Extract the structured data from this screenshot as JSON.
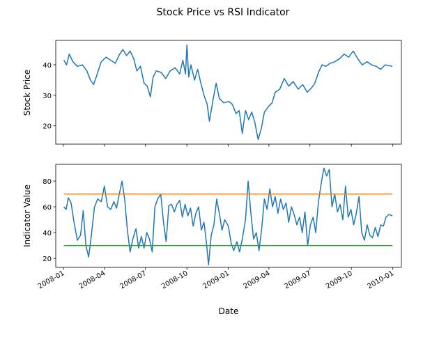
{
  "figure": {
    "title": "Stock Price vs RSI Indicator",
    "xlabel": "Date",
    "x_tick_labels": [
      "2008-01",
      "2008-04",
      "2008-07",
      "2008-10",
      "2009-01",
      "2009-04",
      "2009-07",
      "2009-10",
      "2010-01"
    ]
  },
  "chart_data": [
    {
      "type": "line",
      "ylabel": "Stock Price",
      "xlabel": "",
      "xlim": [
        "2007-12-15",
        "2010-01-20"
      ],
      "ylim": [
        14,
        48
      ],
      "yticks": [
        20,
        30,
        40
      ],
      "grid": false,
      "series": [
        {
          "color": "#1f77b4",
          "points": [
            [
              "2008-01-02",
              41.5
            ],
            [
              "2008-01-08",
              40.0
            ],
            [
              "2008-01-14",
              43.5
            ],
            [
              "2008-01-22",
              41.0
            ],
            [
              "2008-02-01",
              39.5
            ],
            [
              "2008-02-12",
              40.0
            ],
            [
              "2008-02-22",
              38.0
            ],
            [
              "2008-03-01",
              35.0
            ],
            [
              "2008-03-08",
              33.5
            ],
            [
              "2008-03-15",
              36.5
            ],
            [
              "2008-03-25",
              41.0
            ],
            [
              "2008-04-05",
              42.5
            ],
            [
              "2008-04-15",
              41.5
            ],
            [
              "2008-04-25",
              40.5
            ],
            [
              "2008-05-05",
              43.5
            ],
            [
              "2008-05-12",
              45.0
            ],
            [
              "2008-05-20",
              43.0
            ],
            [
              "2008-05-28",
              44.5
            ],
            [
              "2008-06-05",
              42.0
            ],
            [
              "2008-06-12",
              38.0
            ],
            [
              "2008-06-20",
              39.5
            ],
            [
              "2008-06-28",
              34.0
            ],
            [
              "2008-07-05",
              33.0
            ],
            [
              "2008-07-12",
              29.5
            ],
            [
              "2008-07-18",
              36.0
            ],
            [
              "2008-07-25",
              38.0
            ],
            [
              "2008-08-05",
              37.5
            ],
            [
              "2008-08-15",
              35.5
            ],
            [
              "2008-08-25",
              38.0
            ],
            [
              "2008-09-05",
              39.0
            ],
            [
              "2008-09-15",
              37.0
            ],
            [
              "2008-09-22",
              41.5
            ],
            [
              "2008-09-28",
              37.0
            ],
            [
              "2008-10-01",
              46.5
            ],
            [
              "2008-10-05",
              36.0
            ],
            [
              "2008-10-10",
              40.0
            ],
            [
              "2008-10-18",
              35.0
            ],
            [
              "2008-10-25",
              38.5
            ],
            [
              "2008-11-01",
              34.0
            ],
            [
              "2008-11-08",
              30.0
            ],
            [
              "2008-11-15",
              27.0
            ],
            [
              "2008-11-20",
              21.5
            ],
            [
              "2008-11-28",
              28.5
            ],
            [
              "2008-12-05",
              34.0
            ],
            [
              "2008-12-12",
              29.0
            ],
            [
              "2008-12-22",
              27.5
            ],
            [
              "2009-01-02",
              28.0
            ],
            [
              "2009-01-10",
              27.0
            ],
            [
              "2009-01-18",
              24.0
            ],
            [
              "2009-01-25",
              25.0
            ],
            [
              "2009-02-01",
              17.5
            ],
            [
              "2009-02-08",
              25.0
            ],
            [
              "2009-02-15",
              22.0
            ],
            [
              "2009-02-22",
              24.5
            ],
            [
              "2009-03-01",
              21.0
            ],
            [
              "2009-03-08",
              15.5
            ],
            [
              "2009-03-15",
              19.0
            ],
            [
              "2009-03-22",
              24.5
            ],
            [
              "2009-04-01",
              26.5
            ],
            [
              "2009-04-08",
              27.5
            ],
            [
              "2009-04-15",
              31.0
            ],
            [
              "2009-04-25",
              32.0
            ],
            [
              "2009-05-05",
              35.5
            ],
            [
              "2009-05-15",
              33.0
            ],
            [
              "2009-05-25",
              34.5
            ],
            [
              "2009-06-05",
              32.0
            ],
            [
              "2009-06-15",
              33.5
            ],
            [
              "2009-06-25",
              31.0
            ],
            [
              "2009-07-05",
              32.5
            ],
            [
              "2009-07-12",
              34.0
            ],
            [
              "2009-07-20",
              37.5
            ],
            [
              "2009-07-28",
              40.0
            ],
            [
              "2009-08-05",
              39.5
            ],
            [
              "2009-08-15",
              40.5
            ],
            [
              "2009-08-25",
              41.0
            ],
            [
              "2009-09-05",
              42.0
            ],
            [
              "2009-09-15",
              43.5
            ],
            [
              "2009-09-25",
              42.5
            ],
            [
              "2009-10-05",
              44.5
            ],
            [
              "2009-10-15",
              42.0
            ],
            [
              "2009-10-25",
              40.0
            ],
            [
              "2009-11-05",
              41.0
            ],
            [
              "2009-11-15",
              40.0
            ],
            [
              "2009-11-25",
              39.5
            ],
            [
              "2009-12-05",
              38.5
            ],
            [
              "2009-12-15",
              40.0
            ],
            [
              "2009-12-31",
              39.5
            ]
          ]
        }
      ]
    },
    {
      "type": "line",
      "ylabel": "Indicator Value",
      "xlabel": "Date",
      "xlim": [
        "2007-12-15",
        "2010-01-20"
      ],
      "ylim": [
        13,
        93
      ],
      "yticks": [
        20,
        40,
        60,
        80
      ],
      "grid": false,
      "series": [
        {
          "color": "#1f77b4",
          "points": [
            [
              "2008-01-02",
              60
            ],
            [
              "2008-01-07",
              58
            ],
            [
              "2008-01-12",
              67
            ],
            [
              "2008-01-18",
              63
            ],
            [
              "2008-01-24",
              49
            ],
            [
              "2008-02-01",
              34
            ],
            [
              "2008-02-08",
              38
            ],
            [
              "2008-02-14",
              57
            ],
            [
              "2008-02-20",
              30
            ],
            [
              "2008-02-26",
              21
            ],
            [
              "2008-03-03",
              38
            ],
            [
              "2008-03-10",
              60
            ],
            [
              "2008-03-17",
              66
            ],
            [
              "2008-03-25",
              64
            ],
            [
              "2008-04-01",
              76
            ],
            [
              "2008-04-08",
              60
            ],
            [
              "2008-04-15",
              58
            ],
            [
              "2008-04-22",
              64
            ],
            [
              "2008-04-28",
              59
            ],
            [
              "2008-05-04",
              70
            ],
            [
              "2008-05-10",
              80
            ],
            [
              "2008-05-16",
              66
            ],
            [
              "2008-05-22",
              42
            ],
            [
              "2008-05-28",
              25
            ],
            [
              "2008-06-03",
              35
            ],
            [
              "2008-06-10",
              43
            ],
            [
              "2008-06-16",
              28
            ],
            [
              "2008-06-22",
              37
            ],
            [
              "2008-06-28",
              28
            ],
            [
              "2008-07-04",
              40
            ],
            [
              "2008-07-10",
              35
            ],
            [
              "2008-07-16",
              25
            ],
            [
              "2008-07-22",
              60
            ],
            [
              "2008-07-28",
              66
            ],
            [
              "2008-08-04",
              70
            ],
            [
              "2008-08-10",
              48
            ],
            [
              "2008-08-16",
              33
            ],
            [
              "2008-08-22",
              61
            ],
            [
              "2008-08-28",
              62
            ],
            [
              "2008-09-03",
              56
            ],
            [
              "2008-09-09",
              62
            ],
            [
              "2008-09-15",
              65
            ],
            [
              "2008-09-21",
              52
            ],
            [
              "2008-09-27",
              62
            ],
            [
              "2008-10-03",
              53
            ],
            [
              "2008-10-09",
              59
            ],
            [
              "2008-10-15",
              45
            ],
            [
              "2008-10-21",
              55
            ],
            [
              "2008-10-27",
              60
            ],
            [
              "2008-11-02",
              42
            ],
            [
              "2008-11-08",
              48
            ],
            [
              "2008-11-14",
              30
            ],
            [
              "2008-11-18",
              15
            ],
            [
              "2008-11-24",
              38
            ],
            [
              "2008-11-30",
              46
            ],
            [
              "2008-12-06",
              66
            ],
            [
              "2008-12-12",
              55
            ],
            [
              "2008-12-18",
              42
            ],
            [
              "2008-12-24",
              50
            ],
            [
              "2009-01-01",
              45
            ],
            [
              "2009-01-07",
              32
            ],
            [
              "2009-01-13",
              26
            ],
            [
              "2009-01-20",
              33
            ],
            [
              "2009-01-26",
              25
            ],
            [
              "2009-02-01",
              35
            ],
            [
              "2009-02-08",
              50
            ],
            [
              "2009-02-14",
              80
            ],
            [
              "2009-02-20",
              55
            ],
            [
              "2009-02-26",
              35
            ],
            [
              "2009-03-04",
              40
            ],
            [
              "2009-03-10",
              26
            ],
            [
              "2009-03-16",
              43
            ],
            [
              "2009-03-22",
              66
            ],
            [
              "2009-03-28",
              58
            ],
            [
              "2009-04-03",
              74
            ],
            [
              "2009-04-09",
              60
            ],
            [
              "2009-04-15",
              68
            ],
            [
              "2009-04-21",
              55
            ],
            [
              "2009-04-27",
              66
            ],
            [
              "2009-05-03",
              58
            ],
            [
              "2009-05-09",
              63
            ],
            [
              "2009-05-15",
              48
            ],
            [
              "2009-05-21",
              60
            ],
            [
              "2009-05-27",
              54
            ],
            [
              "2009-06-02",
              46
            ],
            [
              "2009-06-08",
              52
            ],
            [
              "2009-06-14",
              40
            ],
            [
              "2009-06-20",
              56
            ],
            [
              "2009-06-26",
              30
            ],
            [
              "2009-07-02",
              46
            ],
            [
              "2009-07-08",
              52
            ],
            [
              "2009-07-14",
              40
            ],
            [
              "2009-07-20",
              64
            ],
            [
              "2009-07-26",
              78
            ],
            [
              "2009-08-01",
              90
            ],
            [
              "2009-08-07",
              84
            ],
            [
              "2009-08-13",
              89
            ],
            [
              "2009-08-19",
              60
            ],
            [
              "2009-08-25",
              70
            ],
            [
              "2009-08-31",
              56
            ],
            [
              "2009-09-06",
              62
            ],
            [
              "2009-09-12",
              50
            ],
            [
              "2009-09-18",
              76
            ],
            [
              "2009-09-24",
              52
            ],
            [
              "2009-09-30",
              58
            ],
            [
              "2009-10-06",
              46
            ],
            [
              "2009-10-12",
              55
            ],
            [
              "2009-10-18",
              68
            ],
            [
              "2009-10-24",
              40
            ],
            [
              "2009-10-30",
              34
            ],
            [
              "2009-11-05",
              46
            ],
            [
              "2009-11-11",
              38
            ],
            [
              "2009-11-17",
              36
            ],
            [
              "2009-11-23",
              44
            ],
            [
              "2009-11-29",
              37
            ],
            [
              "2009-12-05",
              46
            ],
            [
              "2009-12-11",
              45
            ],
            [
              "2009-12-17",
              52
            ],
            [
              "2009-12-23",
              54
            ],
            [
              "2009-12-31",
              53
            ]
          ]
        },
        {
          "color": "#ff7f0e",
          "points": [
            [
              "2008-01-02",
              70
            ],
            [
              "2009-12-31",
              70
            ]
          ]
        },
        {
          "color": "#2ca02c",
          "points": [
            [
              "2008-01-02",
              30
            ],
            [
              "2009-12-31",
              30
            ]
          ]
        }
      ]
    }
  ]
}
